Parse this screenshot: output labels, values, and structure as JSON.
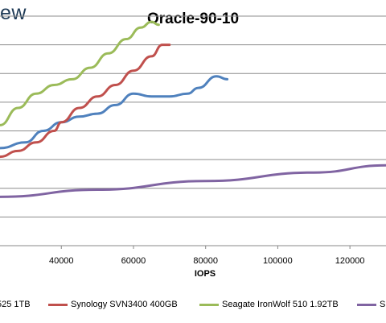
{
  "logo_text": "ew",
  "chart_data": {
    "type": "line",
    "title": "Oracle-90-10",
    "xlabel": "IOPS",
    "ylabel": "",
    "xlim": [
      23000,
      130000
    ],
    "ylim": [
      0,
      8
    ],
    "x_ticks": [
      40000,
      60000,
      80000,
      100000,
      120000
    ],
    "x_tick_labels": [
      "40000",
      "60000",
      "80000",
      "100000",
      "120000"
    ],
    "grid": "horizontal",
    "legend_position": "bottom",
    "series": [
      {
        "name": "525 1TB",
        "color": "#4f81bd",
        "points": [
          [
            23000,
            3.4
          ],
          [
            30000,
            3.6
          ],
          [
            35000,
            4.0
          ],
          [
            40000,
            4.3
          ],
          [
            45000,
            4.5
          ],
          [
            50000,
            4.6
          ],
          [
            55000,
            4.9
          ],
          [
            60000,
            5.3
          ],
          [
            65000,
            5.2
          ],
          [
            70000,
            5.2
          ],
          [
            75000,
            5.3
          ],
          [
            78000,
            5.5
          ],
          [
            83000,
            5.9
          ],
          [
            86000,
            5.8
          ]
        ]
      },
      {
        "name": "Synology SVN3400 400GB",
        "color": "#c0504d",
        "points": [
          [
            23000,
            3.1
          ],
          [
            28000,
            3.3
          ],
          [
            33000,
            3.6
          ],
          [
            38000,
            4.0
          ],
          [
            40000,
            4.3
          ],
          [
            45000,
            4.8
          ],
          [
            50000,
            5.2
          ],
          [
            55000,
            5.6
          ],
          [
            60000,
            6.1
          ],
          [
            65000,
            6.6
          ],
          [
            68000,
            7.0
          ],
          [
            70000,
            7.0
          ]
        ]
      },
      {
        "name": "Seagate IronWolf 510 1.92TB",
        "color": "#9bbb59",
        "points": [
          [
            23000,
            4.2
          ],
          [
            28000,
            4.8
          ],
          [
            33000,
            5.3
          ],
          [
            38000,
            5.6
          ],
          [
            43000,
            5.8
          ],
          [
            48000,
            6.2
          ],
          [
            53000,
            6.7
          ],
          [
            58000,
            7.2
          ],
          [
            62000,
            7.6
          ],
          [
            65000,
            7.8
          ],
          [
            67000,
            7.7
          ]
        ]
      },
      {
        "name": "S",
        "color": "#8064a2",
        "points": [
          [
            23000,
            1.7
          ],
          [
            50000,
            1.95
          ],
          [
            80000,
            2.25
          ],
          [
            110000,
            2.55
          ],
          [
            130000,
            2.8
          ]
        ]
      }
    ]
  }
}
